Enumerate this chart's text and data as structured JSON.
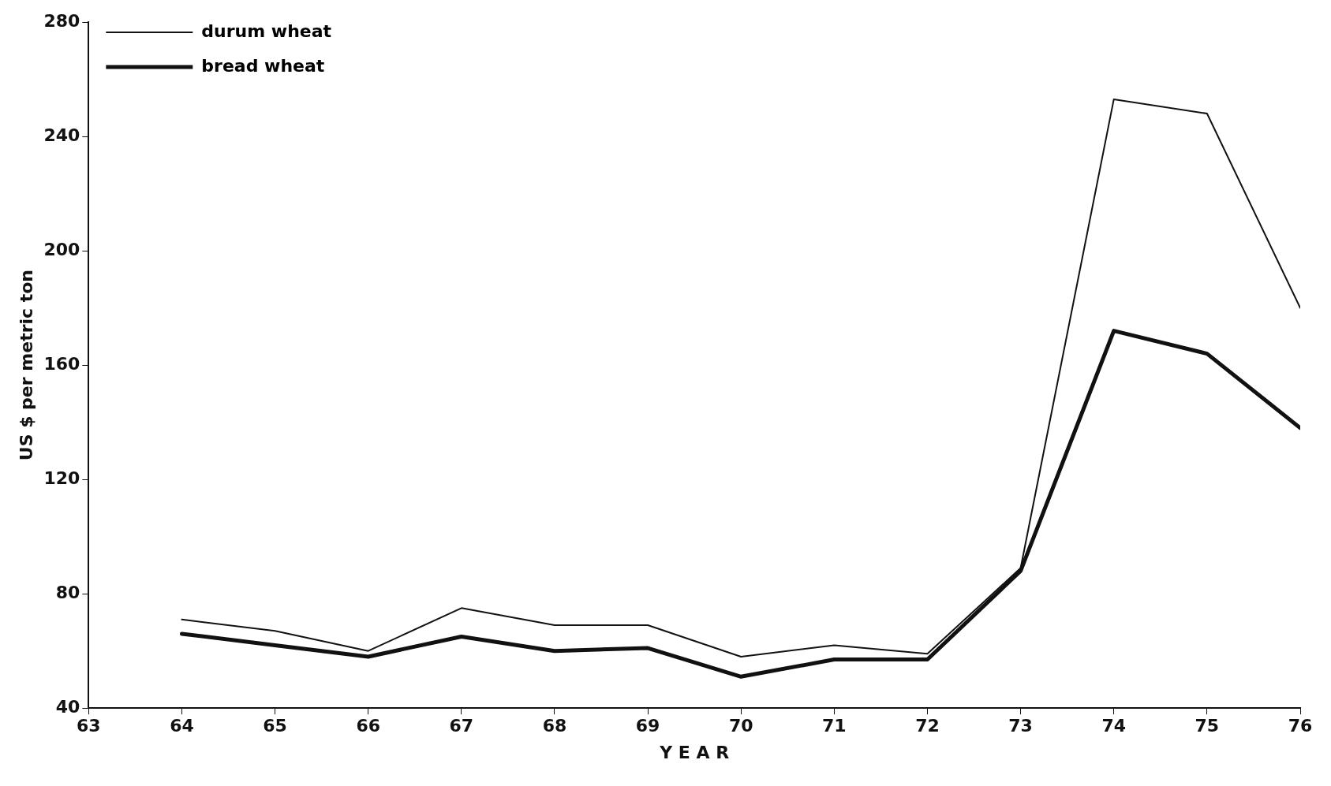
{
  "chart_data": {
    "type": "line",
    "xlabel": "Y E A R",
    "ylabel": "US $ per metric ton",
    "x": [
      64,
      65,
      66,
      67,
      68,
      69,
      70,
      71,
      72,
      73,
      74,
      75,
      76
    ],
    "series": [
      {
        "name": "durum wheat",
        "color": "#111111",
        "values": [
          71,
          67,
          60,
          75,
          69,
          69,
          58,
          62,
          59,
          89,
          253,
          248,
          180
        ]
      },
      {
        "name": "bread wheat",
        "color": "#111111",
        "values": [
          66,
          62,
          58,
          65,
          60,
          61,
          51,
          57,
          57,
          88,
          172,
          164,
          138
        ]
      }
    ],
    "xlim": [
      63,
      76
    ],
    "xticks": [
      63,
      64,
      65,
      66,
      67,
      68,
      69,
      70,
      71,
      72,
      73,
      74,
      75,
      76
    ],
    "ylim": [
      40,
      280
    ],
    "yticks": [
      40,
      80,
      120,
      160,
      200,
      240,
      280
    ],
    "grid": false,
    "legend": "top left",
    "marker": "none",
    "line_style": "solid"
  }
}
